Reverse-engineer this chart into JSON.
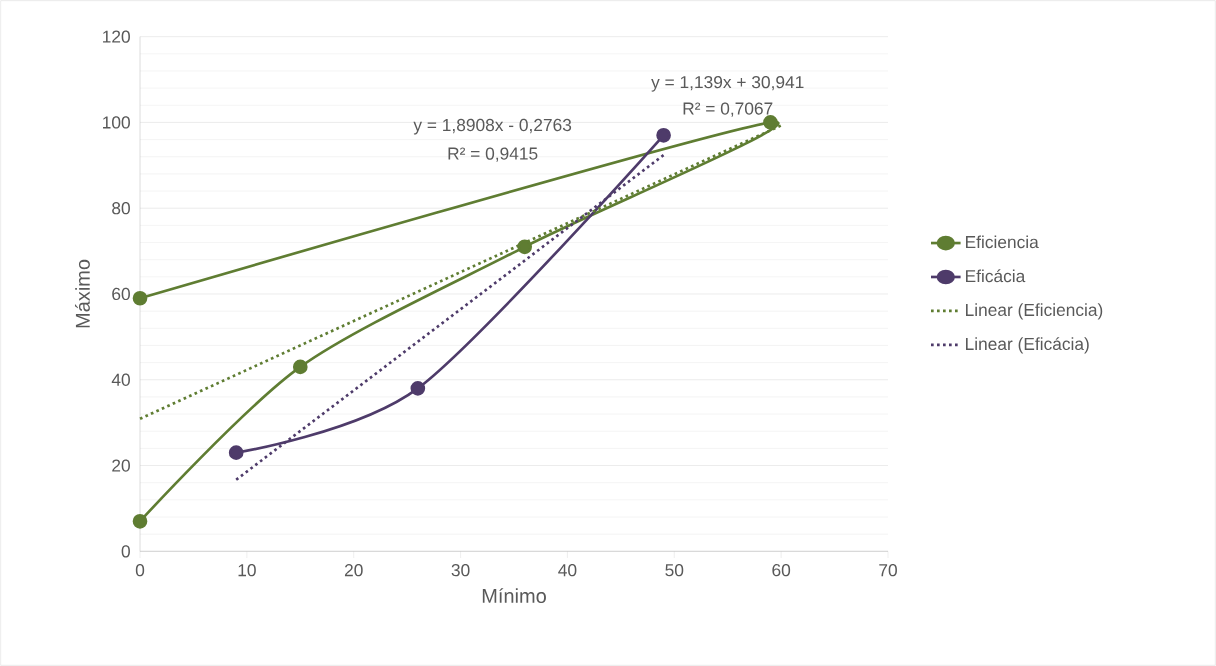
{
  "chart_data": {
    "type": "line",
    "xlabel": "Mínimo",
    "ylabel": "Máximo",
    "xlim": [
      0,
      70
    ],
    "xticks": [
      0,
      10,
      20,
      30,
      40,
      50,
      60,
      70
    ],
    "ylim": [
      0,
      120
    ],
    "yticks": [
      0,
      20,
      40,
      60,
      80,
      100,
      120
    ],
    "grid": "y",
    "legend": "right",
    "marker": "circle",
    "series": [
      {
        "name": "Eficiencia",
        "color": "#5f7d32",
        "x": [
          0,
          15,
          36,
          59,
          0
        ],
        "values": [
          7,
          43,
          71,
          100,
          59
        ]
      },
      {
        "name": "Eficácia",
        "color": "#4e3b6a",
        "x": [
          9,
          26,
          49
        ],
        "values": [
          23,
          38,
          97
        ]
      },
      {
        "name": "Linear (Eficiencia)",
        "color": "#5f7d32",
        "marker": "none",
        "line_style": "dotted",
        "x": [
          0,
          60
        ],
        "values": [
          30.9,
          99.3
        ]
      },
      {
        "name": "Linear (Eficácia)",
        "color": "#4e3b6a",
        "marker": "none",
        "line_style": "dotted",
        "x": [
          9,
          49
        ],
        "values": [
          16.7,
          92.4
        ]
      }
    ],
    "annotations": [
      "y = 1,139x + 30,941",
      "R² = 0,7067",
      "y = 1,8908x - 0,2763",
      "R² = 0,9415"
    ]
  }
}
